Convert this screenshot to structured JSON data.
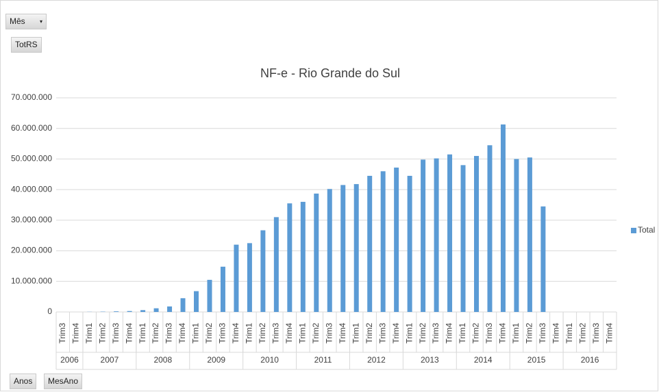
{
  "ui": {
    "filter_button": "Mês",
    "value_button": "TotRS",
    "axis_buttons": [
      "Anos",
      "MesAno"
    ]
  },
  "chart_data": {
    "type": "bar",
    "title": "NF-e - Rio Grande do Sul",
    "categories": [
      "Trim3",
      "Trim4",
      "Trim1",
      "Trim2",
      "Trim3",
      "Trim4",
      "Trim1",
      "Trim2",
      "Trim3",
      "Trim4",
      "Trim1",
      "Trim2",
      "Trim3",
      "Trim4",
      "Trim1",
      "Trim2",
      "Trim3",
      "Trim4",
      "Trim1",
      "Trim2",
      "Trim3",
      "Trim4",
      "Trim1",
      "Trim2",
      "Trim3",
      "Trim4",
      "Trim1",
      "Trim2",
      "Trim3",
      "Trim4",
      "Trim1",
      "Trim2",
      "Trim3",
      "Trim4",
      "Trim1",
      "Trim2",
      "Trim3",
      "Trim4",
      "Trim1",
      "Trim2",
      "Trim3",
      "Trim4"
    ],
    "category_years": [
      "2006",
      "2006",
      "2007",
      "2007",
      "2007",
      "2007",
      "2008",
      "2008",
      "2008",
      "2008",
      "2009",
      "2009",
      "2009",
      "2009",
      "2010",
      "2010",
      "2010",
      "2010",
      "2011",
      "2011",
      "2011",
      "2011",
      "2012",
      "2012",
      "2012",
      "2012",
      "2013",
      "2013",
      "2013",
      "2013",
      "2014",
      "2014",
      "2014",
      "2014",
      "2015",
      "2015",
      "2015",
      "2015",
      "2016",
      "2016",
      "2016",
      "2016"
    ],
    "series": [
      {
        "name": "Total",
        "color": "#5b9bd5",
        "values": [
          null,
          null,
          50000,
          100000,
          200000,
          300000,
          600000,
          1200000,
          1800000,
          4500000,
          6800000,
          10500000,
          14800000,
          22000000,
          22500000,
          26700000,
          31000000,
          35500000,
          36000000,
          38700000,
          40200000,
          41500000,
          41800000,
          44500000,
          46000000,
          47200000,
          44500000,
          49800000,
          50200000,
          51500000,
          48000000,
          51000000,
          54500000,
          61300000,
          50000000,
          50500000,
          34500000,
          null,
          null,
          null,
          null,
          null
        ]
      }
    ],
    "ylim": [
      0,
      70000000
    ],
    "yticks": [
      0,
      {
        "value": 10000000,
        "label": "10.000.000"
      },
      {
        "value": 20000000,
        "label": "20.000.000"
      },
      {
        "value": 30000000,
        "label": "30.000.000"
      },
      {
        "value": 40000000,
        "label": "40.000.000"
      },
      {
        "value": 50000000,
        "label": "50.000.000"
      },
      {
        "value": 60000000,
        "label": "60.000.000"
      },
      {
        "value": 70000000,
        "label": "70.000.000"
      }
    ],
    "grid": true,
    "legend": "right"
  }
}
